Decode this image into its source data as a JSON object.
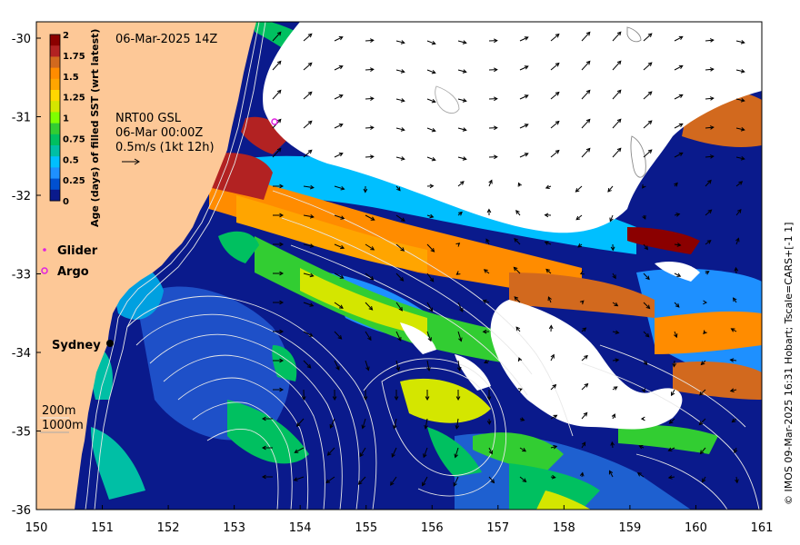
{
  "header": {
    "timestamp": "06-Mar-2025 14Z",
    "product_lines": [
      "NRT00 GSL",
      "06-Mar 00:00Z",
      "0.5m/s (1kt 12h)"
    ]
  },
  "colorbar": {
    "title": "Age (days) of filled SST (wrt latest)",
    "ticks": [
      "2",
      "1.75",
      "1.5",
      "1.25",
      "1",
      "0.75",
      "0.5",
      "0.25",
      "0"
    ],
    "colors": [
      "#8b0000",
      "#b22222",
      "#d2691e",
      "#ff8c00",
      "#ffa500",
      "#ffd700",
      "#d4e600",
      "#7fff00",
      "#32cd32",
      "#00c060",
      "#00bfa5",
      "#00bfff",
      "#1e90ff",
      "#0050d0",
      "#0a1a8c"
    ]
  },
  "legend": {
    "glider": "Glider",
    "argo": "Argo"
  },
  "place_labels": {
    "sydney": "Sydney"
  },
  "contour_legend": {
    "depth1": "200m",
    "depth2": "1000m"
  },
  "axes": {
    "x_ticks": [
      "150",
      "151",
      "152",
      "153",
      "154",
      "155",
      "156",
      "157",
      "158",
      "159",
      "160",
      "161"
    ],
    "y_ticks": [
      "-30",
      "-31",
      "-32",
      "-33",
      "-34",
      "-35",
      "-36"
    ]
  },
  "credit": "© IMOS 09-Mar-2025 16:31 Hobart; Tscale=CARS+[-1 1]",
  "colors": {
    "land": "#fdc897",
    "ocean_deep": "#0a1a8c",
    "cloud": "#ffffff"
  }
}
